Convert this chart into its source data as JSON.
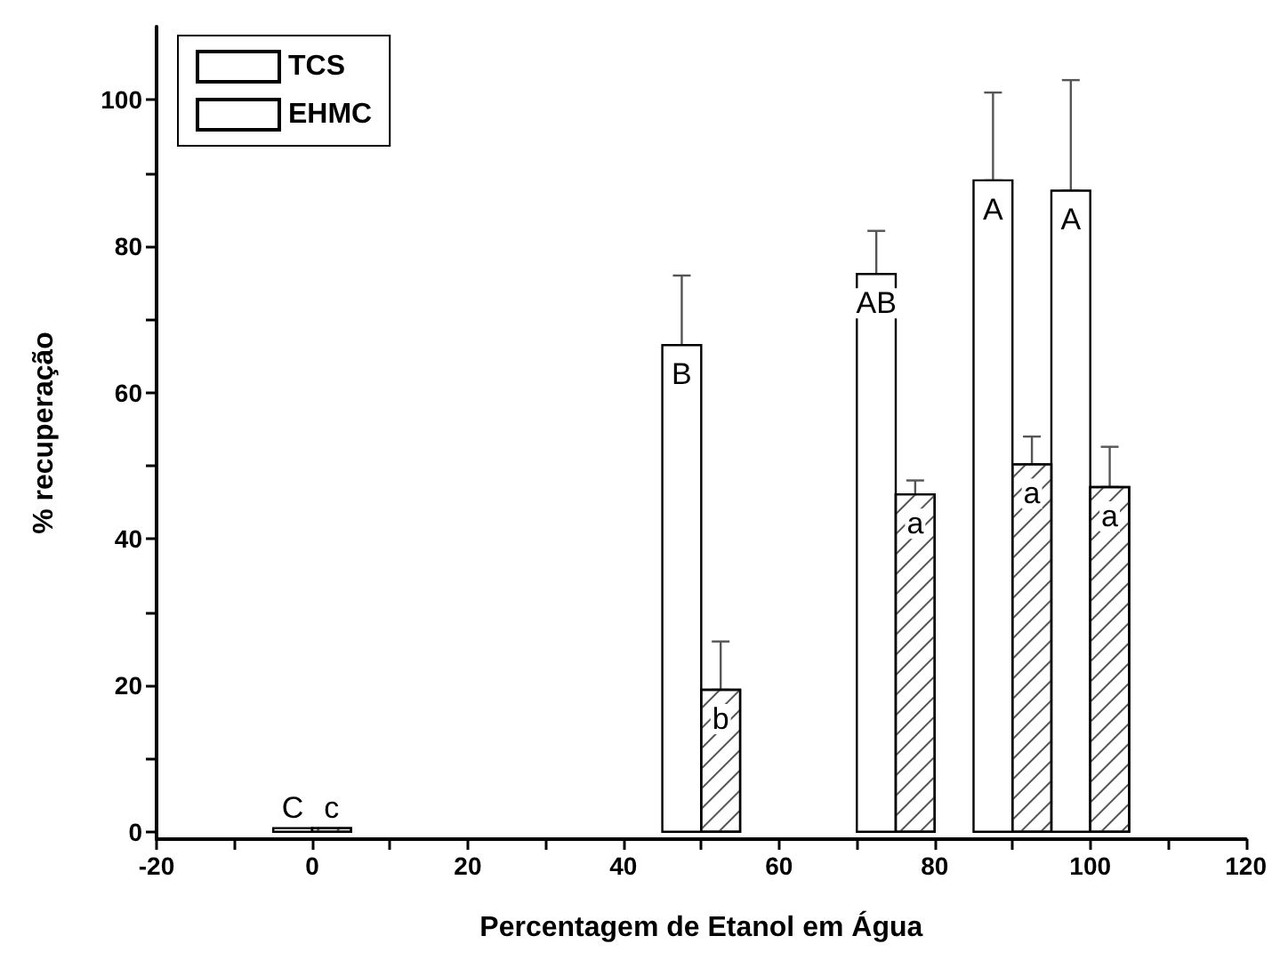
{
  "chart_data": {
    "type": "bar",
    "xlabel": "Percentagem de Etanol em Água",
    "ylabel": "% recuperação",
    "series": [
      {
        "name": "TCS",
        "color": "#ffffff",
        "x": [
          -2.5,
          47.5,
          72.5,
          87.5,
          97.5
        ],
        "values": [
          0.5,
          66.5,
          76.2,
          89,
          87.6
        ],
        "errors": [
          null,
          [
            66.5,
            76
          ],
          [
            76.2,
            82.1
          ],
          [
            89,
            101
          ],
          [
            87.6,
            102.7
          ]
        ]
      },
      {
        "name": "EHMC",
        "color": "#ffffff",
        "x": [
          2.5,
          52.5,
          77.5,
          92.5,
          102.5
        ],
        "values": [
          0.5,
          19.4,
          46.1,
          50.2,
          47.1
        ],
        "errors": [
          null,
          [
            19.4,
            26
          ],
          [
            46.1,
            48
          ],
          [
            50.2,
            54
          ],
          [
            47.1,
            52.6
          ]
        ]
      }
    ],
    "xlim": [
      -20,
      120
    ],
    "xticks": [
      -20,
      {
        "value": -10,
        "label": null
      },
      0,
      {
        "value": 10,
        "label": null
      },
      20,
      {
        "value": 30,
        "label": null
      },
      40,
      {
        "value": 50,
        "label": null
      },
      60,
      {
        "value": 70,
        "label": null
      },
      80,
      {
        "value": 90,
        "label": null
      },
      100,
      {
        "value": 110,
        "label": null
      },
      120
    ],
    "ylim": [
      -1,
      110
    ],
    "yticks": [
      0,
      {
        "value": 10,
        "label": null
      },
      20,
      {
        "value": 30,
        "label": null
      },
      40,
      {
        "value": 50,
        "label": null
      },
      60,
      {
        "value": 70,
        "label": null
      },
      80,
      {
        "value": 90,
        "label": null
      },
      100
    ],
    "annotations": [
      {
        "text": "C",
        "x": -2.5,
        "y": 0.5
      },
      {
        "text": "c",
        "x": 2.5,
        "y": 0.5
      },
      {
        "text": "B",
        "x": 47.5,
        "y": 66.5
      },
      {
        "text": "b",
        "x": 52.5,
        "y": 19.4
      },
      {
        "text": "AB",
        "x": 72.5,
        "y": 76.2
      },
      {
        "text": "a",
        "x": 77.5,
        "y": 46.1
      },
      {
        "text": "A",
        "x": 87.5,
        "y": 89
      },
      {
        "text": "a",
        "x": 92.5,
        "y": 50.2
      },
      {
        "text": "A",
        "x": 97.5,
        "y": 87.6
      },
      {
        "text": "a",
        "x": 102.5,
        "y": 47.1
      }
    ],
    "grid": false,
    "legend": "top left"
  }
}
